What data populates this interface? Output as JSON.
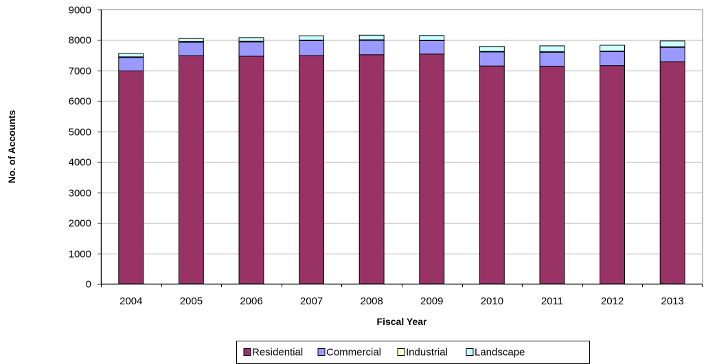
{
  "chart_data": {
    "type": "bar",
    "stacked": true,
    "title": "",
    "xlabel": "Fiscal Year",
    "ylabel": "No. of Accounts",
    "ylim": [
      0,
      9000
    ],
    "yticks": [
      "0",
      "1000",
      "2000",
      "3000",
      "4000",
      "5000",
      "6000",
      "7000",
      "8000",
      "9000"
    ],
    "grid": true,
    "legend_position": "bottom",
    "categories": [
      "2004",
      "2005",
      "2006",
      "2007",
      "2008",
      "2009",
      "2010",
      "2011",
      "2012",
      "2013"
    ],
    "series": [
      {
        "name": "Residential",
        "color": "#993366",
        "values": [
          6990,
          7490,
          7470,
          7490,
          7520,
          7540,
          7150,
          7140,
          7160,
          7290
        ]
      },
      {
        "name": "Commercial",
        "color": "#9999ff",
        "values": [
          440,
          440,
          470,
          490,
          470,
          440,
          460,
          460,
          460,
          470
        ]
      },
      {
        "name": "Industrial",
        "color": "#ffffcc",
        "values": [
          20,
          20,
          20,
          20,
          20,
          20,
          20,
          20,
          20,
          20
        ]
      },
      {
        "name": "Landscape",
        "color": "#ccffff",
        "values": [
          110,
          100,
          120,
          140,
          150,
          150,
          160,
          190,
          190,
          190
        ]
      }
    ]
  }
}
